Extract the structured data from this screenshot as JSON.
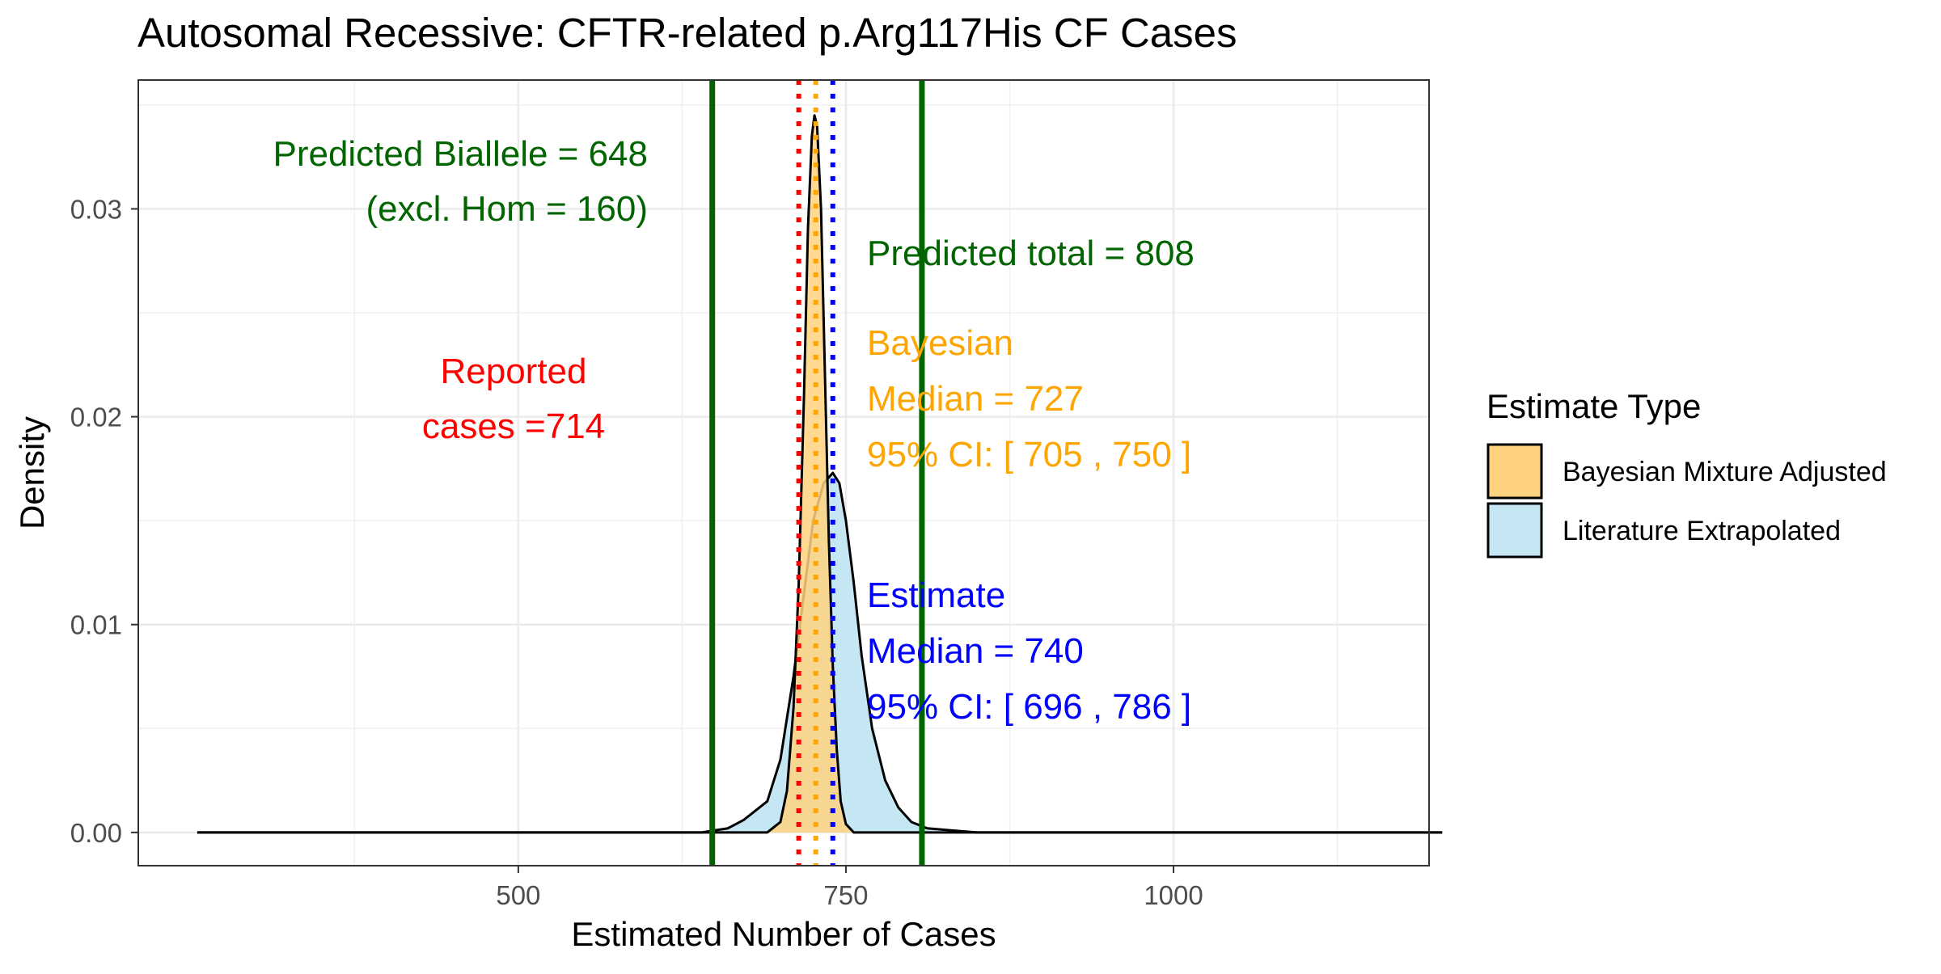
{
  "chart_data": {
    "type": "area",
    "title": "Autosomal Recessive: CFTR-related p.Arg117His CF Cases",
    "xlabel": "Estimated Number of Cases",
    "ylabel": "Density",
    "xlim": [
      210,
      1195
    ],
    "ylim": [
      -0.0016,
      0.0362
    ],
    "x_ticks": [
      500,
      750,
      1000
    ],
    "y_ticks": [
      0.0,
      0.01,
      0.02,
      0.03
    ],
    "y_tick_labels": [
      "0.00",
      "0.01",
      "0.02",
      "0.03"
    ],
    "grid": true,
    "legend": {
      "title": "Estimate Type",
      "position": "right",
      "entries": [
        "Bayesian Mixture Adjusted",
        "Literature Extrapolated"
      ]
    },
    "series": [
      {
        "name": "Literature Extrapolated",
        "color": "#c5e6f3",
        "points": [
          [
            255,
            0
          ],
          [
            640,
            0
          ],
          [
            660,
            0.0002
          ],
          [
            672,
            0.0006
          ],
          [
            690,
            0.0015
          ],
          [
            700,
            0.0035
          ],
          [
            710,
            0.0075
          ],
          [
            718,
            0.0115
          ],
          [
            725,
            0.015
          ],
          [
            733,
            0.0168
          ],
          [
            740,
            0.0173
          ],
          [
            745,
            0.0168
          ],
          [
            750,
            0.015
          ],
          [
            756,
            0.012
          ],
          [
            762,
            0.0085
          ],
          [
            770,
            0.005
          ],
          [
            780,
            0.0025
          ],
          [
            790,
            0.0012
          ],
          [
            800,
            0.0005
          ],
          [
            812,
            0.0002
          ],
          [
            830,
            0.0001
          ],
          [
            850,
            0
          ],
          [
            1205,
            0
          ]
        ]
      },
      {
        "name": "Bayesian Mixture Adjusted",
        "color": "#ffd27f",
        "points": [
          [
            255,
            0
          ],
          [
            690,
            0
          ],
          [
            700,
            0.0005
          ],
          [
            705,
            0.002
          ],
          [
            710,
            0.006
          ],
          [
            714,
            0.012
          ],
          [
            718,
            0.021
          ],
          [
            721,
            0.029
          ],
          [
            724,
            0.0335
          ],
          [
            726,
            0.0345
          ],
          [
            728,
            0.034
          ],
          [
            731,
            0.03
          ],
          [
            734,
            0.022
          ],
          [
            737,
            0.014
          ],
          [
            740,
            0.008
          ],
          [
            743,
            0.004
          ],
          [
            746,
            0.0015
          ],
          [
            750,
            0.0004
          ],
          [
            756,
            0
          ],
          [
            1205,
            0
          ]
        ]
      }
    ],
    "vlines": [
      {
        "name": "Predicted Biallele",
        "x": 648,
        "color": "#006400",
        "style": "solid"
      },
      {
        "name": "Predicted total",
        "x": 808,
        "color": "#006400",
        "style": "solid"
      },
      {
        "name": "Reported cases",
        "x": 714,
        "color": "#ff0000",
        "style": "dotted"
      },
      {
        "name": "Bayesian Median",
        "x": 727,
        "color": "#ffa500",
        "style": "dotted"
      },
      {
        "name": "Estimate Median",
        "x": 740,
        "color": "#0000ff",
        "style": "dotted"
      }
    ],
    "annotations": [
      {
        "lines": [
          "Predicted Biallele = 648",
          "(excl. Hom = 160)"
        ],
        "color": "#006400",
        "anchor": "end"
      },
      {
        "lines": [
          "Predicted total = 808"
        ],
        "color": "#006400",
        "anchor": "start"
      },
      {
        "lines": [
          "Reported",
          "cases =714"
        ],
        "color": "#ff0000",
        "anchor": "middle"
      },
      {
        "lines": [
          "Bayesian",
          "Median = 727",
          "95% CI: [ 705 , 750 ]"
        ],
        "color": "#ffa500",
        "anchor": "start"
      },
      {
        "lines": [
          "Estimate",
          "Median = 740",
          "95% CI: [ 696 , 786 ]"
        ],
        "color": "#0000ff",
        "anchor": "start"
      }
    ]
  }
}
